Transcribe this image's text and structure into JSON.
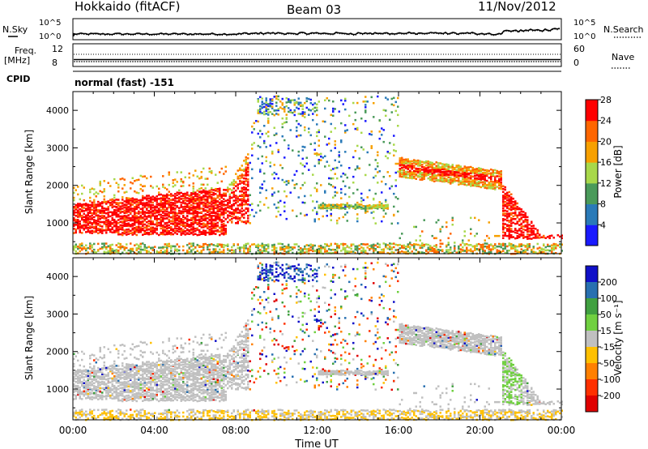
{
  "header": {
    "station": "Hokkaido (fitACF)",
    "beam": "Beam 03",
    "date": "11/Nov/2012"
  },
  "top_panels": {
    "nsky_label": "N.Sky",
    "nsearch_label": "N.Search",
    "noise_ticks": [
      "10^5",
      "10^0"
    ],
    "freq_label_line1": "Freq.",
    "freq_label_line2": "[MHz]",
    "freq_ticks": [
      "12",
      "8"
    ],
    "nave_label": "Nave",
    "nave_ticks": [
      "60",
      "0"
    ],
    "cpid_label": "CPID",
    "cpid_text": "normal (fast) -151"
  },
  "chart_data": [
    {
      "type": "heatmap",
      "name": "power",
      "ylabel": "Slant Range [km]",
      "xlabel": "",
      "x_ticks": [
        "00:00",
        "04:00",
        "08:00",
        "12:00",
        "16:00",
        "20:00",
        "00:00"
      ],
      "xlim_hours": [
        0,
        24
      ],
      "ylim": [
        180,
        4500
      ],
      "y_ticks": [
        1000,
        2000,
        3000,
        4000
      ],
      "colorbar": {
        "label": "Power [dB]",
        "ticks": [
          4,
          8,
          12,
          16,
          20,
          24,
          28
        ],
        "colors": [
          "#1a1aff",
          "#2a7ab8",
          "#4a9a5a",
          "#a8d84a",
          "#f7a000",
          "#ff6600",
          "#ff0000"
        ]
      }
    },
    {
      "type": "heatmap",
      "name": "velocity",
      "ylabel": "Slant Range [km]",
      "xlabel": "Time UT",
      "x_ticks": [
        "00:00",
        "04:00",
        "08:00",
        "12:00",
        "16:00",
        "20:00",
        "00:00"
      ],
      "xlim_hours": [
        0,
        24
      ],
      "ylim": [
        180,
        4500
      ],
      "y_ticks": [
        1000,
        2000,
        3000,
        4000
      ],
      "colorbar": {
        "label": "Velocity [m s⁻¹]",
        "ticks": [
          200,
          100,
          50,
          15,
          -15,
          -50,
          -100,
          -200
        ],
        "colors": [
          "#1010c8",
          "#2870b0",
          "#40a040",
          "#70d040",
          "#c0c0c0",
          "#ffc000",
          "#ff8000",
          "#ff3000",
          "#e00000"
        ]
      }
    }
  ]
}
